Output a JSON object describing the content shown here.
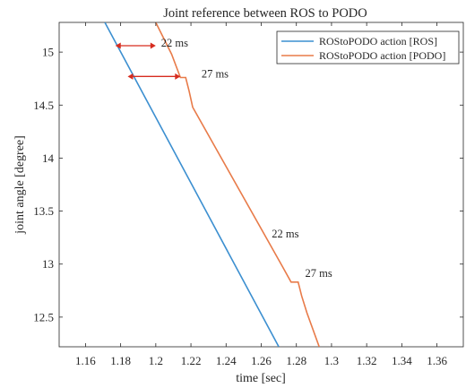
{
  "chart_data": {
    "type": "line",
    "title": "Joint reference between ROS to PODO",
    "xlabel": "time [sec]",
    "ylabel": "joint angle [degree]",
    "xlim": [
      1.145,
      1.375
    ],
    "ylim": [
      12.22,
      15.28
    ],
    "xticks": [
      "1.16",
      "1.18",
      "1.2",
      "1.22",
      "1.24",
      "1.26",
      "1.28",
      "1.3",
      "1.32",
      "1.34",
      "1.36"
    ],
    "yticks": [
      "12.5",
      "13",
      "13.5",
      "14",
      "14.5",
      "15"
    ],
    "grid": false,
    "legend_position": "top-right",
    "series": [
      {
        "name": "ROStoPODO action [ROS]",
        "color": "#3c8fd0",
        "points": [
          [
            1.171,
            15.28
          ],
          [
            1.27,
            12.22
          ]
        ]
      },
      {
        "name": "ROStoPODO action [PODO]",
        "color": "#e87b49",
        "points": [
          [
            1.2,
            15.28
          ],
          [
            1.209,
            14.98
          ],
          [
            1.214,
            14.76
          ],
          [
            1.217,
            14.76
          ],
          [
            1.219,
            14.63
          ],
          [
            1.221,
            14.48
          ],
          [
            1.272,
            12.98
          ],
          [
            1.277,
            12.83
          ],
          [
            1.281,
            12.83
          ],
          [
            1.283,
            12.7
          ],
          [
            1.286,
            12.54
          ],
          [
            1.293,
            12.22
          ]
        ]
      }
    ],
    "annotations": [
      {
        "text": "22 ms",
        "x": 1.203,
        "y": 15.05,
        "arrow_from": 1.177,
        "arrow_to": 1.2,
        "arrow_y": 15.06
      },
      {
        "text": "27 ms",
        "x": 1.226,
        "y": 14.76,
        "arrow_from": 1.184,
        "arrow_to": 1.214,
        "arrow_y": 14.77
      },
      {
        "text": "22 ms",
        "x": 1.266,
        "y": 13.25,
        "arrow_from": null,
        "arrow_to": null,
        "arrow_y": null
      },
      {
        "text": "27 ms",
        "x": 1.285,
        "y": 12.88,
        "arrow_from": null,
        "arrow_to": null,
        "arrow_y": null
      }
    ],
    "annotation_arrow_color": "#d62c1f"
  }
}
